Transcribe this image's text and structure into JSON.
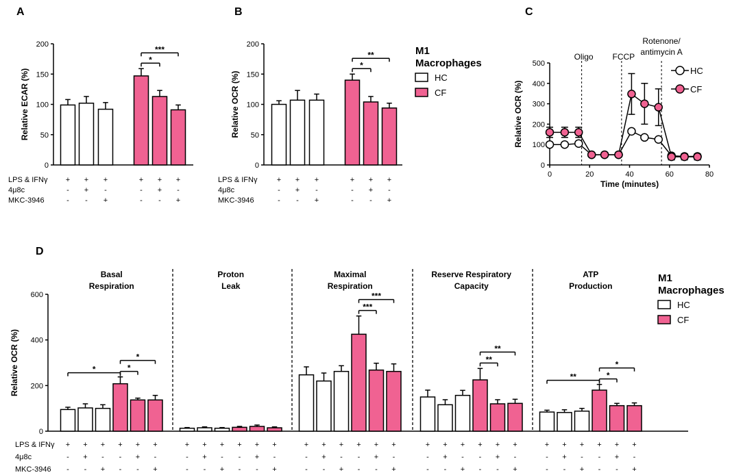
{
  "colors": {
    "hc_fill": "#ffffff",
    "cf_fill": "#f06292",
    "line": "#000000"
  },
  "row_labels": [
    "LPS & IFNγ",
    "4μ8c",
    "MKC-3946"
  ],
  "legend": {
    "title_line1": "M1",
    "title_line2": "Macrophages",
    "hc": "HC",
    "cf": "CF"
  },
  "chart_data": [
    {
      "panel": "A",
      "type": "bar",
      "ylabel": "Relative ECAR (%)",
      "ylim": [
        0,
        200
      ],
      "yticks": [
        "0",
        "50",
        "100",
        "150",
        "200"
      ],
      "bars": [
        {
          "group": "HC",
          "value": 99,
          "err": 9
        },
        {
          "group": "HC",
          "value": 102,
          "err": 11
        },
        {
          "group": "HC",
          "value": 92,
          "err": 11
        },
        {
          "group": "CF",
          "value": 147,
          "err": 12
        },
        {
          "group": "CF",
          "value": 113,
          "err": 10
        },
        {
          "group": "CF",
          "value": 91,
          "err": 8
        }
      ],
      "treatment_rows": [
        [
          "+",
          "+",
          "+",
          "+",
          "+",
          "+"
        ],
        [
          "-",
          "+",
          "-",
          "-",
          "+",
          "-"
        ],
        [
          "-",
          "-",
          "+",
          "-",
          "-",
          "+"
        ]
      ],
      "significance": [
        {
          "from": 3,
          "to": 4,
          "label": "*"
        },
        {
          "from": 3,
          "to": 5,
          "label": "***"
        }
      ]
    },
    {
      "panel": "B",
      "type": "bar",
      "ylabel": "Relative OCR (%)",
      "ylim": [
        0,
        200
      ],
      "yticks": [
        "0",
        "50",
        "100",
        "150",
        "200"
      ],
      "bars": [
        {
          "group": "HC",
          "value": 100,
          "err": 6
        },
        {
          "group": "HC",
          "value": 107,
          "err": 16
        },
        {
          "group": "HC",
          "value": 107,
          "err": 10
        },
        {
          "group": "CF",
          "value": 140,
          "err": 10
        },
        {
          "group": "CF",
          "value": 104,
          "err": 9
        },
        {
          "group": "CF",
          "value": 94,
          "err": 8
        }
      ],
      "treatment_rows": [
        [
          "+",
          "+",
          "+",
          "+",
          "+",
          "+"
        ],
        [
          "-",
          "+",
          "-",
          "-",
          "+",
          "-"
        ],
        [
          "-",
          "-",
          "+",
          "-",
          "-",
          "+"
        ]
      ],
      "significance": [
        {
          "from": 3,
          "to": 4,
          "label": "*"
        },
        {
          "from": 3,
          "to": 5,
          "label": "**"
        }
      ]
    },
    {
      "panel": "C",
      "type": "line",
      "xlabel": "Time (minutes)",
      "ylabel": "Relative OCR (%)",
      "xlim": [
        0,
        80
      ],
      "ylim": [
        0,
        500
      ],
      "xticks": [
        "0",
        "20",
        "40",
        "60",
        "80"
      ],
      "yticks": [
        "0",
        "100",
        "200",
        "300",
        "400",
        "500"
      ],
      "annotations": [
        {
          "x": 16,
          "label_lines": [
            "Oligo"
          ]
        },
        {
          "x": 36,
          "label_lines": [
            "FCCP"
          ]
        },
        {
          "x": 56,
          "label_lines": [
            "Rotenone/",
            "antimycin A"
          ]
        }
      ],
      "series": [
        {
          "name": "HC",
          "x": [
            0,
            7.5,
            14.5,
            21,
            27.5,
            34.5,
            41,
            47.5,
            54.5,
            61,
            67.5,
            74
          ],
          "y": [
            100,
            100,
            105,
            50,
            50,
            50,
            165,
            135,
            125,
            45,
            42,
            42
          ],
          "err": [
            10,
            10,
            10,
            8,
            8,
            8,
            10,
            10,
            10,
            8,
            8,
            8
          ]
        },
        {
          "name": "CF",
          "x": [
            0,
            7.5,
            14.5,
            21,
            27.5,
            34.5,
            41,
            47.5,
            54.5,
            61,
            67.5,
            74
          ],
          "y": [
            160,
            160,
            160,
            50,
            50,
            50,
            348,
            300,
            283,
            40,
            40,
            40
          ],
          "err": [
            25,
            25,
            25,
            10,
            10,
            10,
            100,
            100,
            90,
            15,
            15,
            15
          ]
        }
      ]
    },
    {
      "panel": "D",
      "type": "bar",
      "ylabel": "Relative OCR (%)",
      "ylim": [
        0,
        600
      ],
      "yticks": [
        "0",
        "200",
        "400",
        "600"
      ],
      "treatment_rows": [
        [
          "+",
          "+",
          "+",
          "+",
          "+",
          "+"
        ],
        [
          "-",
          "+",
          "-",
          "-",
          "+",
          "-"
        ],
        [
          "-",
          "-",
          "+",
          "-",
          "-",
          "+"
        ]
      ],
      "groups": [
        {
          "title_lines": [
            "Basal",
            "Respiration"
          ],
          "bars": [
            {
              "group": "HC",
              "value": 95,
              "err": 10
            },
            {
              "group": "HC",
              "value": 102,
              "err": 18
            },
            {
              "group": "HC",
              "value": 100,
              "err": 16
            },
            {
              "group": "CF",
              "value": 208,
              "err": 30
            },
            {
              "group": "CF",
              "value": 137,
              "err": 8
            },
            {
              "group": "CF",
              "value": 137,
              "err": 20
            }
          ],
          "significance": [
            {
              "from": 0,
              "to": 3,
              "label": "*"
            },
            {
              "from": 3,
              "to": 4,
              "label": "*"
            },
            {
              "from": 3,
              "to": 5,
              "label": "*"
            }
          ]
        },
        {
          "title_lines": [
            "Proton",
            "Leak"
          ],
          "bars": [
            {
              "group": "HC",
              "value": 13,
              "err": 3
            },
            {
              "group": "HC",
              "value": 15,
              "err": 4
            },
            {
              "group": "HC",
              "value": 13,
              "err": 3
            },
            {
              "group": "CF",
              "value": 17,
              "err": 4
            },
            {
              "group": "CF",
              "value": 21,
              "err": 6
            },
            {
              "group": "CF",
              "value": 15,
              "err": 4
            }
          ],
          "significance": []
        },
        {
          "title_lines": [
            "Maximal",
            "Respiration"
          ],
          "bars": [
            {
              "group": "HC",
              "value": 247,
              "err": 35
            },
            {
              "group": "HC",
              "value": 220,
              "err": 35
            },
            {
              "group": "HC",
              "value": 262,
              "err": 25
            },
            {
              "group": "CF",
              "value": 425,
              "err": 80
            },
            {
              "group": "CF",
              "value": 268,
              "err": 30
            },
            {
              "group": "CF",
              "value": 262,
              "err": 33
            }
          ],
          "significance": [
            {
              "from": 3,
              "to": 4,
              "label": "***"
            },
            {
              "from": 3,
              "to": 5,
              "label": "***"
            }
          ]
        },
        {
          "title_lines": [
            "Reserve Respiratory",
            "Capacity"
          ],
          "bars": [
            {
              "group": "HC",
              "value": 150,
              "err": 30
            },
            {
              "group": "HC",
              "value": 116,
              "err": 22
            },
            {
              "group": "HC",
              "value": 157,
              "err": 22
            },
            {
              "group": "CF",
              "value": 225,
              "err": 50
            },
            {
              "group": "CF",
              "value": 120,
              "err": 18
            },
            {
              "group": "CF",
              "value": 122,
              "err": 18
            }
          ],
          "significance": [
            {
              "from": 3,
              "to": 4,
              "label": "**"
            },
            {
              "from": 3,
              "to": 5,
              "label": "**"
            }
          ]
        },
        {
          "title_lines": [
            "ATP",
            "Production"
          ],
          "bars": [
            {
              "group": "HC",
              "value": 84,
              "err": 8
            },
            {
              "group": "HC",
              "value": 82,
              "err": 12
            },
            {
              "group": "HC",
              "value": 88,
              "err": 12
            },
            {
              "group": "CF",
              "value": 180,
              "err": 25
            },
            {
              "group": "CF",
              "value": 112,
              "err": 10
            },
            {
              "group": "CF",
              "value": 112,
              "err": 12
            }
          ],
          "significance": [
            {
              "from": 0,
              "to": 3,
              "label": "**"
            },
            {
              "from": 3,
              "to": 4,
              "label": "*"
            },
            {
              "from": 3,
              "to": 5,
              "label": "*"
            }
          ]
        }
      ]
    }
  ]
}
